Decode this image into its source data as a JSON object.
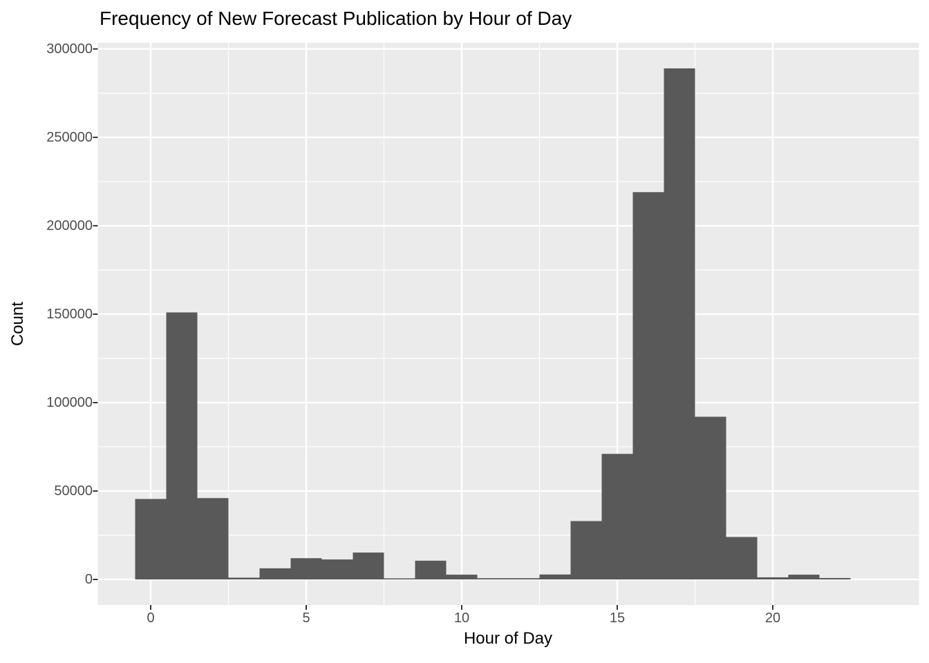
{
  "chart_data": {
    "type": "bar",
    "subtype": "histogram",
    "title": "Frequency of New Forecast Publication by Hour of Day",
    "xlabel": "Hour of Day",
    "ylabel": "Count",
    "bin_width": 1,
    "categories": [
      0,
      1,
      2,
      3,
      4,
      5,
      6,
      7,
      8,
      9,
      10,
      11,
      12,
      13,
      14,
      15,
      16,
      17,
      18,
      19,
      20,
      21,
      22,
      23
    ],
    "values": [
      45500,
      151000,
      46000,
      1000,
      6300,
      12000,
      11300,
      15200,
      600,
      10600,
      2700,
      700,
      700,
      2800,
      33000,
      71000,
      219000,
      289000,
      92000,
      24000,
      1200,
      2700,
      800,
      0
    ],
    "x_ticks": [
      0,
      5,
      10,
      15,
      20
    ],
    "x_tick_labels": [
      "0",
      "5",
      "10",
      "15",
      "20"
    ],
    "y_ticks": [
      0,
      50000,
      100000,
      150000,
      200000,
      250000,
      300000
    ],
    "y_tick_labels": [
      "0",
      "50000",
      "100000",
      "150000",
      "200000",
      "250000",
      "300000"
    ],
    "xlim": [
      -0.5,
      23.5
    ],
    "ylim": [
      0,
      289000
    ],
    "expansion": 0.05,
    "grid": "major-and-minor",
    "legend_position": "none",
    "colors": {
      "bar_fill": "#595959",
      "panel_bg": "#EBEBEB",
      "grid_major": "#FFFFFF",
      "grid_minor": "#FFFFFF",
      "tick_mark": "#333333",
      "tick_text": "#4D4D4D",
      "title_text": "#000000"
    }
  }
}
